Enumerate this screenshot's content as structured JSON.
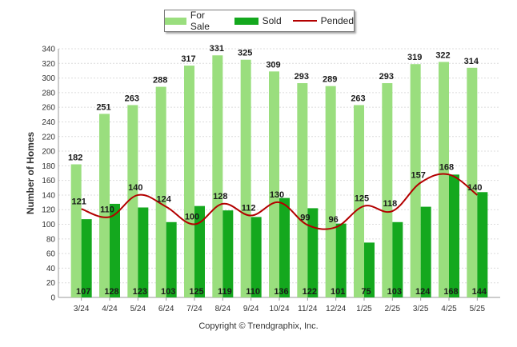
{
  "chart_data": {
    "type": "bar",
    "categories": [
      "3/24",
      "4/24",
      "5/24",
      "6/24",
      "7/24",
      "8/24",
      "9/24",
      "10/24",
      "11/24",
      "12/24",
      "1/25",
      "2/25",
      "3/25",
      "4/25",
      "5/25"
    ],
    "series": [
      {
        "name": "For Sale",
        "type": "bar",
        "color": "#9ade7e",
        "values": [
          182,
          251,
          263,
          288,
          317,
          331,
          325,
          309,
          293,
          289,
          263,
          293,
          319,
          322,
          314
        ]
      },
      {
        "name": "Sold",
        "type": "bar",
        "color": "#14a81e",
        "values": [
          107,
          128,
          123,
          103,
          125,
          119,
          110,
          136,
          122,
          101,
          75,
          103,
          124,
          168,
          144
        ]
      },
      {
        "name": "Pended",
        "type": "line",
        "color": "#b30000",
        "values": [
          121,
          110,
          140,
          124,
          100,
          128,
          112,
          130,
          99,
          96,
          125,
          118,
          157,
          168,
          140
        ]
      }
    ],
    "ylabel": "Number of Homes",
    "xlabel": "",
    "ylim": [
      0,
      340
    ],
    "yticks": [
      0,
      20,
      40,
      60,
      80,
      100,
      120,
      140,
      160,
      180,
      200,
      220,
      240,
      260,
      280,
      300,
      320,
      340
    ],
    "grid": true,
    "legend_position": "top-center"
  },
  "legend": {
    "items": [
      {
        "label": "For Sale",
        "color": "#9ade7e",
        "kind": "bar"
      },
      {
        "label": "Sold",
        "color": "#14a81e",
        "kind": "bar"
      },
      {
        "label": "Pended",
        "color": "#b30000",
        "kind": "line"
      }
    ]
  },
  "footer": {
    "copyright": "Copyright © Trendgraphix, Inc."
  }
}
